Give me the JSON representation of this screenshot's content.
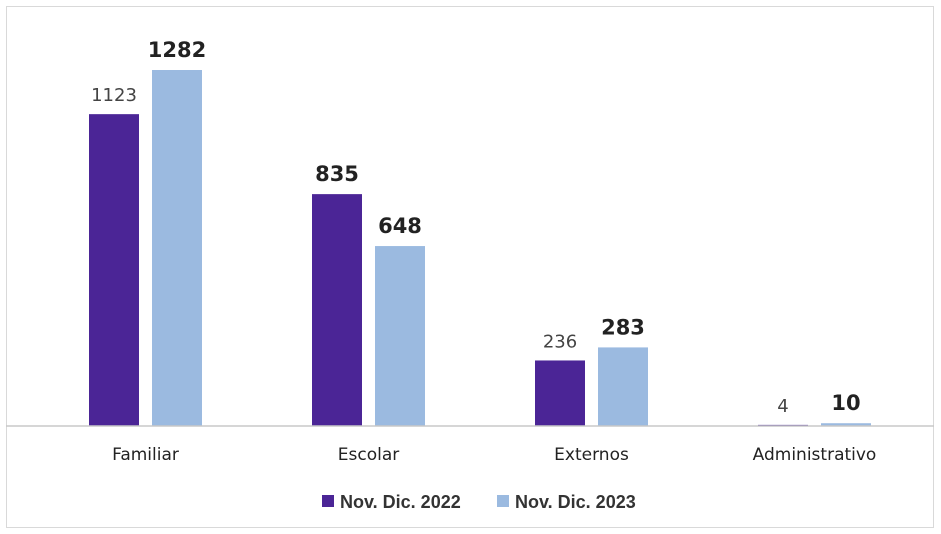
{
  "chart_data": {
    "type": "bar",
    "categories": [
      "Familiar",
      "Escolar",
      "Externos",
      "Administrativo"
    ],
    "series": [
      {
        "name": "Nov. Dic. 2022",
        "color": "#4b2596",
        "values": [
          1123,
          835,
          236,
          4
        ],
        "labels": [
          "1123",
          "835",
          "236",
          "4"
        ],
        "label_bold": [
          false,
          true,
          false,
          false
        ]
      },
      {
        "name": "Nov. Dic. 2023",
        "color": "#9bbae0",
        "values": [
          1282,
          648,
          283,
          10
        ],
        "labels": [
          "1282",
          "648",
          "283",
          "10"
        ],
        "label_bold": [
          true,
          true,
          true,
          true
        ]
      }
    ],
    "ylim": [
      0,
      1282
    ],
    "grid": false,
    "legend_position": "bottom-center",
    "title": "",
    "xlabel": "",
    "ylabel": ""
  }
}
